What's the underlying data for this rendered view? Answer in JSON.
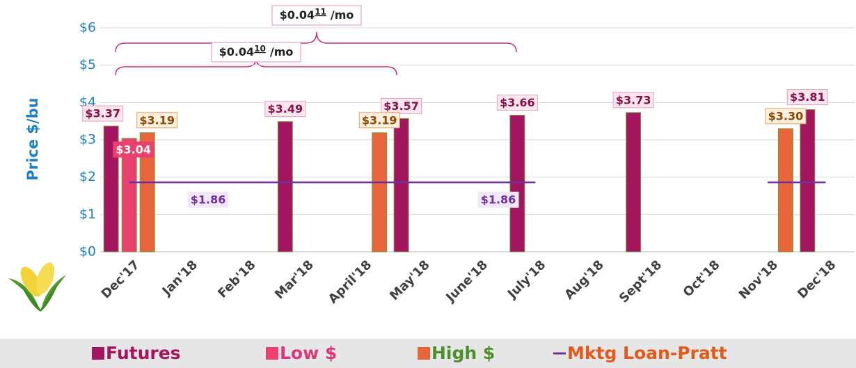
{
  "chart_data": {
    "type": "bar",
    "y_label": "Price $/bu",
    "categories": [
      "Dec'17",
      "Jan'18",
      "Feb'18",
      "Mar'18",
      "April'18",
      "May'18",
      "June'18",
      "July'18",
      "Aug'18",
      "Sept'18",
      "Oct'18",
      "Nov'18",
      "Dec'18"
    ],
    "ylim": [
      0,
      6
    ],
    "yticks": [
      {
        "value": 0,
        "label": "$0"
      },
      {
        "value": 1,
        "label": "$1"
      },
      {
        "value": 2,
        "label": "$2"
      },
      {
        "value": 3,
        "label": "$3"
      },
      {
        "value": 4,
        "label": "$4"
      },
      {
        "value": 5,
        "label": "$5"
      },
      {
        "value": 6,
        "label": "$6"
      }
    ],
    "grid": true,
    "series": [
      {
        "name": "Futures",
        "type": "bar",
        "color": "#a3165f",
        "legend_text_color": "#a3165f",
        "values": [
          3.37,
          null,
          null,
          3.49,
          null,
          3.57,
          null,
          3.66,
          null,
          3.73,
          null,
          null,
          3.81
        ],
        "value_labels": [
          "$3.37",
          null,
          null,
          "$3.49",
          null,
          "$3.57",
          null,
          "$3.66",
          null,
          "$3.73",
          null,
          null,
          "$3.81"
        ]
      },
      {
        "name": "Low $",
        "type": "bar",
        "color": "#e8416e",
        "legend_text_color": "#d9387a",
        "values": [
          3.04,
          null,
          null,
          null,
          null,
          null,
          null,
          null,
          null,
          null,
          null,
          null,
          null
        ],
        "value_labels": [
          "$3.04",
          null,
          null,
          null,
          null,
          null,
          null,
          null,
          null,
          null,
          null,
          null,
          null
        ]
      },
      {
        "name": "High $",
        "type": "bar",
        "color": "#e8643a",
        "legend_text_color": "#4e8f2b",
        "values": [
          3.19,
          null,
          null,
          null,
          3.19,
          null,
          null,
          null,
          null,
          null,
          null,
          3.3,
          null
        ],
        "value_labels": [
          "$3.19",
          null,
          null,
          null,
          "$3.19",
          null,
          null,
          null,
          null,
          null,
          null,
          "$3.30",
          null
        ]
      },
      {
        "name": "Mktg Loan-Pratt",
        "type": "line",
        "color": "#7030a0",
        "legend_text_color": "#e05a1a",
        "values": [
          1.86,
          1.86,
          1.86,
          1.86,
          1.86,
          1.86,
          1.86,
          1.86,
          null,
          null,
          null,
          1.86,
          1.86
        ],
        "value_labels": [
          null,
          "$1.86",
          null,
          null,
          null,
          null,
          "$1.86",
          null,
          null,
          null,
          null,
          null,
          null
        ]
      }
    ],
    "annotations": [
      {
        "text": "$0.04",
        "superscript": "11",
        "suffix": "/mo"
      },
      {
        "text": "$0.04",
        "superscript": "10",
        "suffix": "/mo"
      }
    ]
  }
}
